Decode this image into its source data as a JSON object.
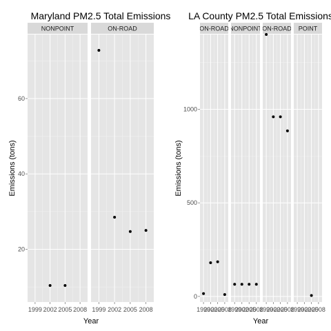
{
  "colors": {
    "panel_bg": "#e5e5e5",
    "strip_bg": "#d9d9d9",
    "grid_major": "#ffffff",
    "grid_minor": "#f2f2f2",
    "point": "#000000"
  },
  "chart_data": [
    {
      "type": "scatter",
      "title": "Maryland PM2.5 Total Emissions",
      "xlabel": "Year",
      "ylabel": "Emissions (tons)",
      "xlim": [
        1997.5,
        2009.5
      ],
      "ylim": [
        6,
        77
      ],
      "x_ticks": [
        1999,
        2002,
        2005,
        2008
      ],
      "x_tick_labels": [
        "1999",
        "2002",
        "2005",
        "2008"
      ],
      "y_ticks": [
        20,
        40,
        60
      ],
      "y_tick_labels": [
        "20",
        "40",
        "60"
      ],
      "grid": true,
      "facets": [
        {
          "label": "NONPOINT",
          "points": [
            {
              "x": 2002,
              "y": 10.4
            },
            {
              "x": 2005,
              "y": 10.4
            }
          ]
        },
        {
          "label": "ON-ROAD",
          "points": [
            {
              "x": 1999,
              "y": 72.8
            },
            {
              "x": 2002,
              "y": 28.5
            },
            {
              "x": 2005,
              "y": 24.7
            },
            {
              "x": 2008,
              "y": 25.0
            }
          ]
        }
      ]
    },
    {
      "type": "scatter",
      "title": "LA County PM2.5 Total Emissions",
      "xlabel": "Year",
      "ylabel": "Emissions (tons)",
      "xlim": [
        1997.5,
        2009.5
      ],
      "ylim": [
        -30,
        1400
      ],
      "x_ticks": [
        1999,
        2002,
        2005,
        2008
      ],
      "x_tick_labels": [
        "1999",
        "2002",
        "2005",
        "2008"
      ],
      "y_ticks": [
        0,
        500,
        1000
      ],
      "y_tick_labels": [
        "0",
        "500",
        "1000"
      ],
      "grid": true,
      "facets": [
        {
          "label": "ON-ROAD",
          "points": [
            {
              "x": 1999,
              "y": 15
            },
            {
              "x": 2002,
              "y": 180
            },
            {
              "x": 2005,
              "y": 185
            },
            {
              "x": 2008,
              "y": 10
            }
          ]
        },
        {
          "label": "NONPOINT",
          "points": [
            {
              "x": 1999,
              "y": 65
            },
            {
              "x": 2002,
              "y": 65
            },
            {
              "x": 2005,
              "y": 65
            },
            {
              "x": 2008,
              "y": 65
            }
          ]
        },
        {
          "label": "ON-ROAD",
          "points": [
            {
              "x": 1999,
              "y": 1400
            },
            {
              "x": 2002,
              "y": 960
            },
            {
              "x": 2005,
              "y": 960
            },
            {
              "x": 2008,
              "y": 885
            }
          ]
        },
        {
          "label": "POINT",
          "points": [
            {
              "x": 2005,
              "y": 5
            }
          ]
        }
      ]
    }
  ]
}
